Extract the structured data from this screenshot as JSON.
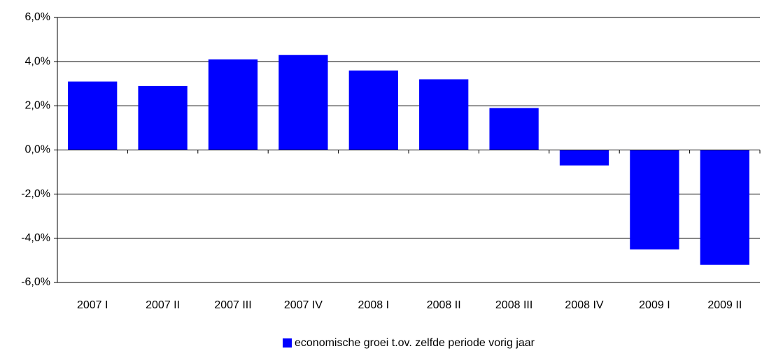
{
  "chart_data": {
    "type": "bar",
    "categories": [
      "2007 I",
      "2007 II",
      "2007 III",
      "2007 IV",
      "2008 I",
      "2008 II",
      "2008 III",
      "2008 IV",
      "2009 I",
      "2009 II"
    ],
    "series": [
      {
        "name": "economische groei t.ov. zelfde periode vorig jaar",
        "color": "#0000ff",
        "values": [
          3.1,
          2.9,
          4.1,
          4.3,
          3.6,
          3.2,
          1.9,
          -0.7,
          -4.5,
          -5.2
        ]
      }
    ],
    "ylim": [
      -6,
      6
    ],
    "yticks": [
      {
        "value": -6,
        "label": "-6,0%"
      },
      {
        "value": -4,
        "label": "-4,0%"
      },
      {
        "value": -2,
        "label": "-2,0%"
      },
      {
        "value": 0,
        "label": "0,0%"
      },
      {
        "value": 2,
        "label": "2,0%"
      },
      {
        "value": 4,
        "label": "4,0%"
      },
      {
        "value": 6,
        "label": "6,0%"
      }
    ],
    "grid": true,
    "legend": "bottom"
  }
}
